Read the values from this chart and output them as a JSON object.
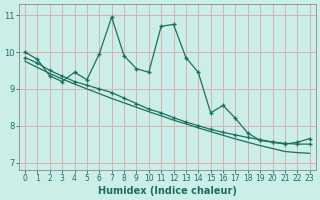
{
  "xlabel": "Humidex (Indice chaleur)",
  "bg_color": "#cceee8",
  "grid_color_major": "#d9b0b0",
  "line_color": "#1a7060",
  "xlim": [
    -0.5,
    23.5
  ],
  "ylim": [
    6.8,
    11.3
  ],
  "xticks": [
    0,
    1,
    2,
    3,
    4,
    5,
    6,
    7,
    8,
    9,
    10,
    11,
    12,
    13,
    14,
    15,
    16,
    17,
    18,
    19,
    20,
    21,
    22,
    23
  ],
  "yticks": [
    7,
    8,
    9,
    10,
    11
  ],
  "line1_x": [
    0,
    1,
    2,
    3,
    4,
    5,
    6,
    7,
    8,
    9,
    10,
    11,
    12,
    13,
    14,
    15,
    16,
    17,
    18,
    19,
    20,
    21,
    22,
    23
  ],
  "line1_y": [
    10.0,
    9.8,
    9.35,
    9.2,
    9.45,
    9.25,
    9.95,
    10.95,
    9.9,
    9.55,
    9.45,
    10.7,
    10.75,
    9.85,
    9.45,
    8.35,
    8.55,
    8.2,
    7.8,
    7.6,
    7.55,
    7.5,
    7.55,
    7.65
  ],
  "line2_x": [
    0,
    1,
    2,
    3,
    4,
    5,
    6,
    7,
    8,
    9,
    10,
    11,
    12,
    13,
    14,
    15,
    16,
    17,
    18,
    19,
    20,
    21,
    22,
    23
  ],
  "line2_y": [
    9.85,
    9.7,
    9.5,
    9.35,
    9.2,
    9.1,
    9.0,
    8.9,
    8.75,
    8.6,
    8.45,
    8.35,
    8.22,
    8.1,
    8.0,
    7.9,
    7.82,
    7.75,
    7.68,
    7.62,
    7.56,
    7.52,
    7.5,
    7.5
  ],
  "line3_x": [
    0,
    1,
    2,
    3,
    4,
    5,
    6,
    7,
    8,
    9,
    10,
    11,
    12,
    13,
    14,
    15,
    16,
    17,
    18,
    19,
    20,
    21,
    22,
    23
  ],
  "line3_y": [
    9.75,
    9.58,
    9.42,
    9.27,
    9.13,
    9.0,
    8.87,
    8.74,
    8.62,
    8.5,
    8.38,
    8.27,
    8.15,
    8.05,
    7.94,
    7.84,
    7.74,
    7.64,
    7.55,
    7.46,
    7.38,
    7.3,
    7.27,
    7.25
  ]
}
